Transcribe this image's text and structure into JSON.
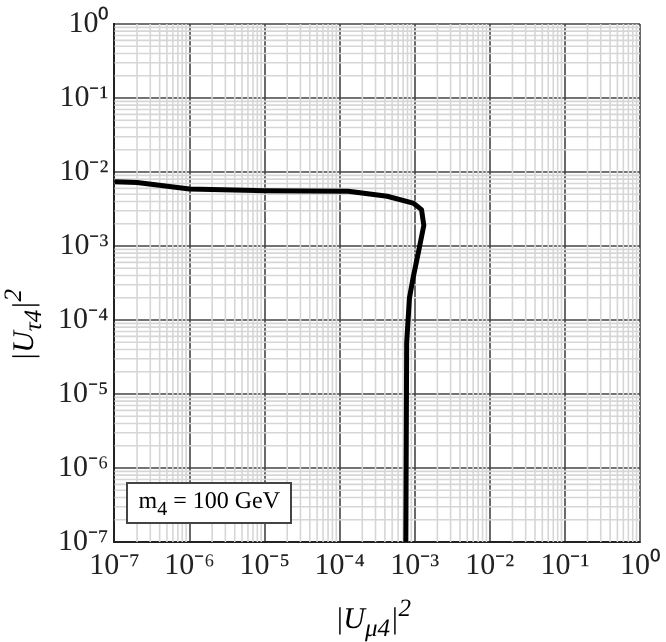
{
  "chart_data": {
    "type": "line",
    "xlabel": "|U$_{μ4}$|$^{2}$",
    "ylabel": "|U$_{τ4}$|$^{2}$",
    "log": "xy",
    "grid": true,
    "legend": false,
    "marker": "none",
    "line_style": "solid",
    "xlim": [
      1e-07,
      1
    ],
    "ylim": [
      1e-07,
      1
    ],
    "xticks": [
      {
        "value": 1e-07,
        "label": "10⁻⁷"
      },
      {
        "value": 1e-06,
        "label": "10⁻⁶"
      },
      {
        "value": 1e-05,
        "label": "10⁻⁵"
      },
      {
        "value": 0.0001,
        "label": "10⁻⁴"
      },
      {
        "value": 0.001,
        "label": "10⁻³"
      },
      {
        "value": 0.01,
        "label": "10⁻²"
      },
      {
        "value": 0.1,
        "label": "10⁻¹"
      },
      {
        "value": 1,
        "label": "10⁰"
      }
    ],
    "yticks": [
      {
        "value": 1e-07,
        "label": "10⁻⁷"
      },
      {
        "value": 1e-06,
        "label": "10⁻⁶"
      },
      {
        "value": 1e-05,
        "label": "10⁻⁵"
      },
      {
        "value": 0.0001,
        "label": "10⁻⁴"
      },
      {
        "value": 0.001,
        "label": "10⁻³"
      },
      {
        "value": 0.01,
        "label": "10⁻²"
      },
      {
        "value": 0.1,
        "label": "10⁻¹"
      },
      {
        "value": 1,
        "label": "10⁰"
      }
    ],
    "annotations": [
      "m$_{4}$ = 100 GeV"
    ],
    "series": [
      {
        "color": "#000000",
        "x": [
          1e-07,
          2e-07,
          1e-06,
          1e-05,
          0.00013,
          0.00043,
          0.00095,
          0.00123,
          0.00132,
          0.00112,
          0.00095,
          0.00085,
          0.00078,
          0.00076
        ],
        "values": [
          0.0074,
          0.0072,
          0.0059,
          0.0056,
          0.0055,
          0.0047,
          0.0038,
          0.0031,
          0.0019,
          0.00083,
          0.00037,
          0.0002,
          4.9e-05,
          1e-07
        ]
      }
    ]
  }
}
